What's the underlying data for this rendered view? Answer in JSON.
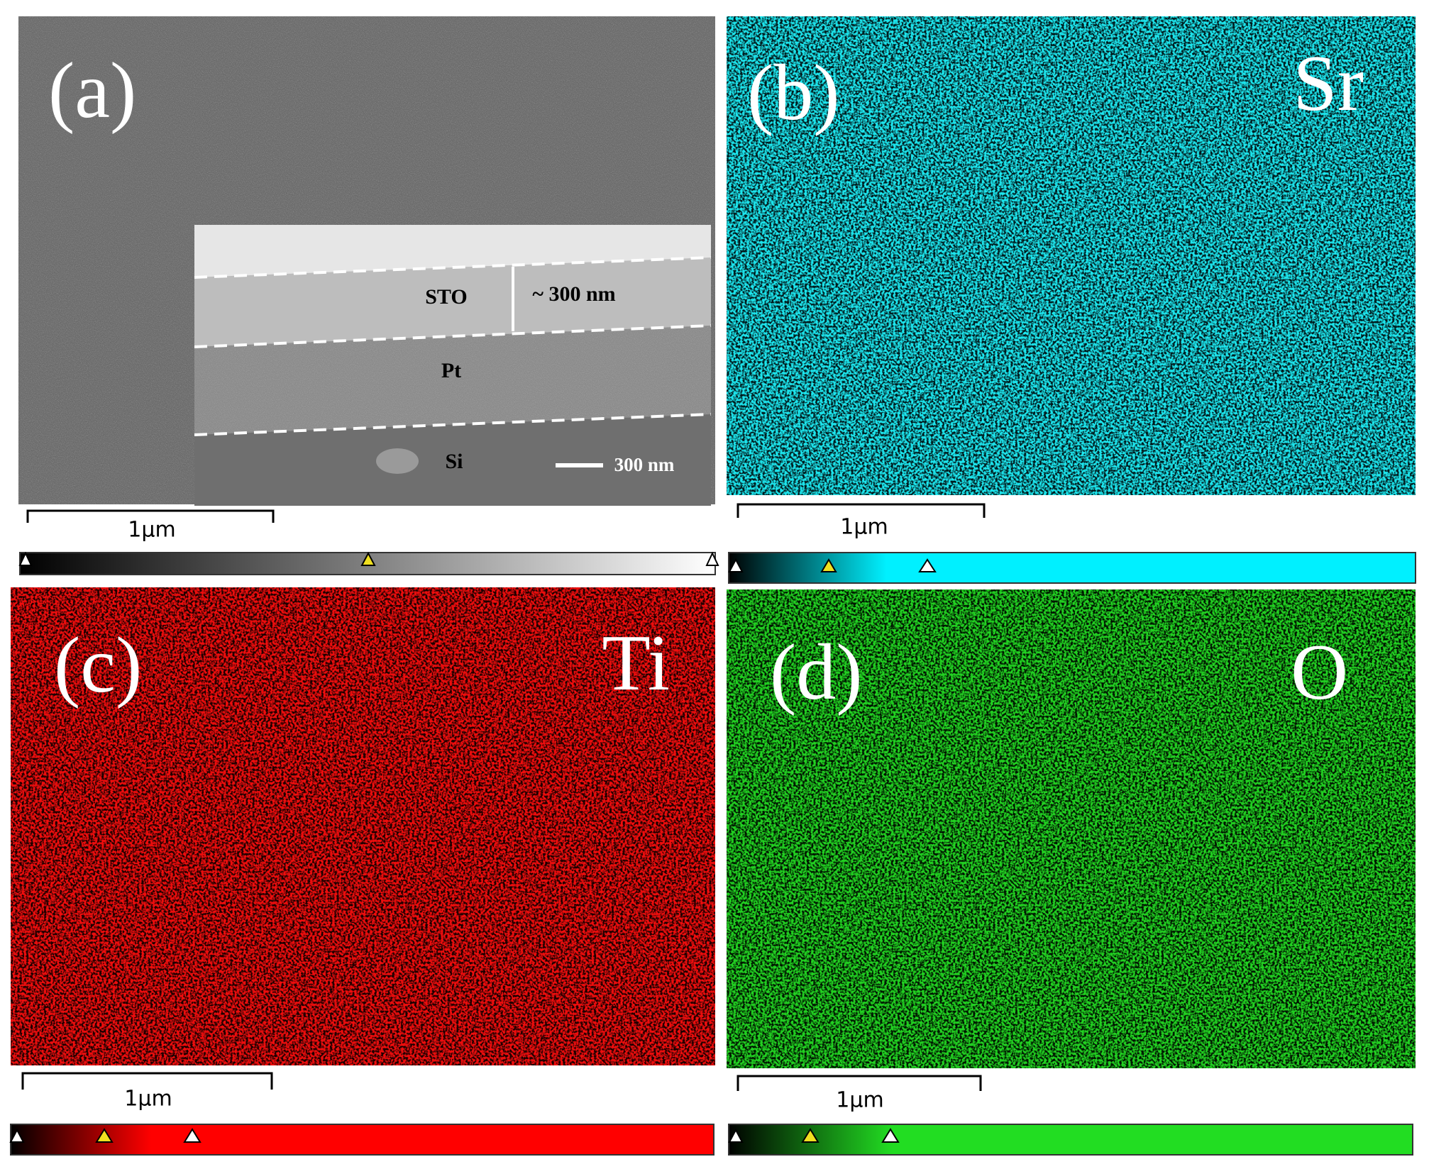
{
  "panels": [
    {
      "label": "(a)",
      "scale_bar": "1µm",
      "inset": {
        "layers": [
          "STO",
          "Pt",
          "Si"
        ],
        "thickness": "~ 300 nm",
        "scale_bar": "300 nm"
      }
    },
    {
      "label": "(b)",
      "element": "Sr",
      "scale_bar": "1µm"
    },
    {
      "label": "(c)",
      "element": "Ti",
      "scale_bar": "1µm"
    },
    {
      "label": "(d)",
      "element": "O",
      "scale_bar": "1µm"
    }
  ]
}
